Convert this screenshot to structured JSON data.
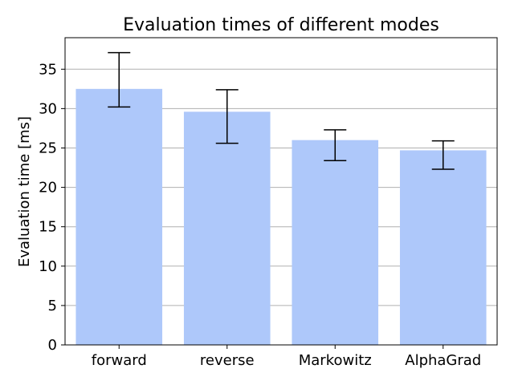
{
  "chart_data": {
    "type": "bar",
    "title": "Evaluation times of different modes",
    "xlabel": "",
    "ylabel": "Evaluation time [ms]",
    "categories": [
      "forward",
      "reverse",
      "Markowitz",
      "AlphaGrad"
    ],
    "values": [
      32.5,
      29.6,
      26.0,
      24.7
    ],
    "error_low": [
      30.2,
      25.6,
      23.4,
      22.3
    ],
    "error_high": [
      37.1,
      32.4,
      27.3,
      25.9
    ],
    "ylim": [
      0,
      39
    ],
    "yticks": [
      0,
      5,
      10,
      15,
      20,
      25,
      30,
      35
    ],
    "grid": "horizontal",
    "bar_color": "#aec8fa",
    "grid_color": "#b0b0b0",
    "errorbar_color": "#000000"
  }
}
